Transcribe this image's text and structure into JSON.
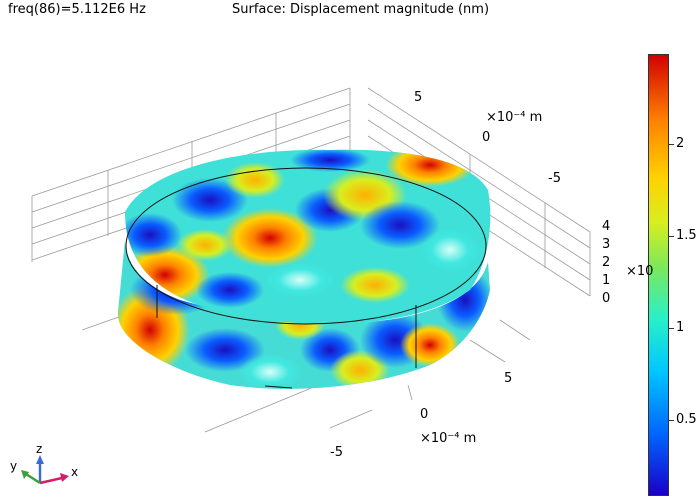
{
  "header": {
    "left": "freq(86)=5.112E6 Hz",
    "center": "Surface: Displacement magnitude (nm)"
  },
  "axes": {
    "y_unit": "×10⁻⁴ m",
    "y_ticks": [
      "5",
      "0",
      "-5"
    ],
    "x_unit": "×10⁻⁴ m",
    "x_ticks": [
      "5",
      "0",
      "-5"
    ],
    "z_ticks": [
      "4",
      "3",
      "2",
      "1",
      "0"
    ],
    "z_unit": "×10"
  },
  "colorbar": {
    "ticks": [
      "2",
      "1.5",
      "1",
      "0.5"
    ],
    "gradient_colors": [
      "#1a00c8",
      "#0066ff",
      "#00c6ff",
      "#28f0c8",
      "#7ee85a",
      "#d8ee20",
      "#ffd200",
      "#ff8200",
      "#d20000"
    ]
  },
  "triad": {
    "z": "z",
    "y": "y",
    "x": "x"
  }
}
